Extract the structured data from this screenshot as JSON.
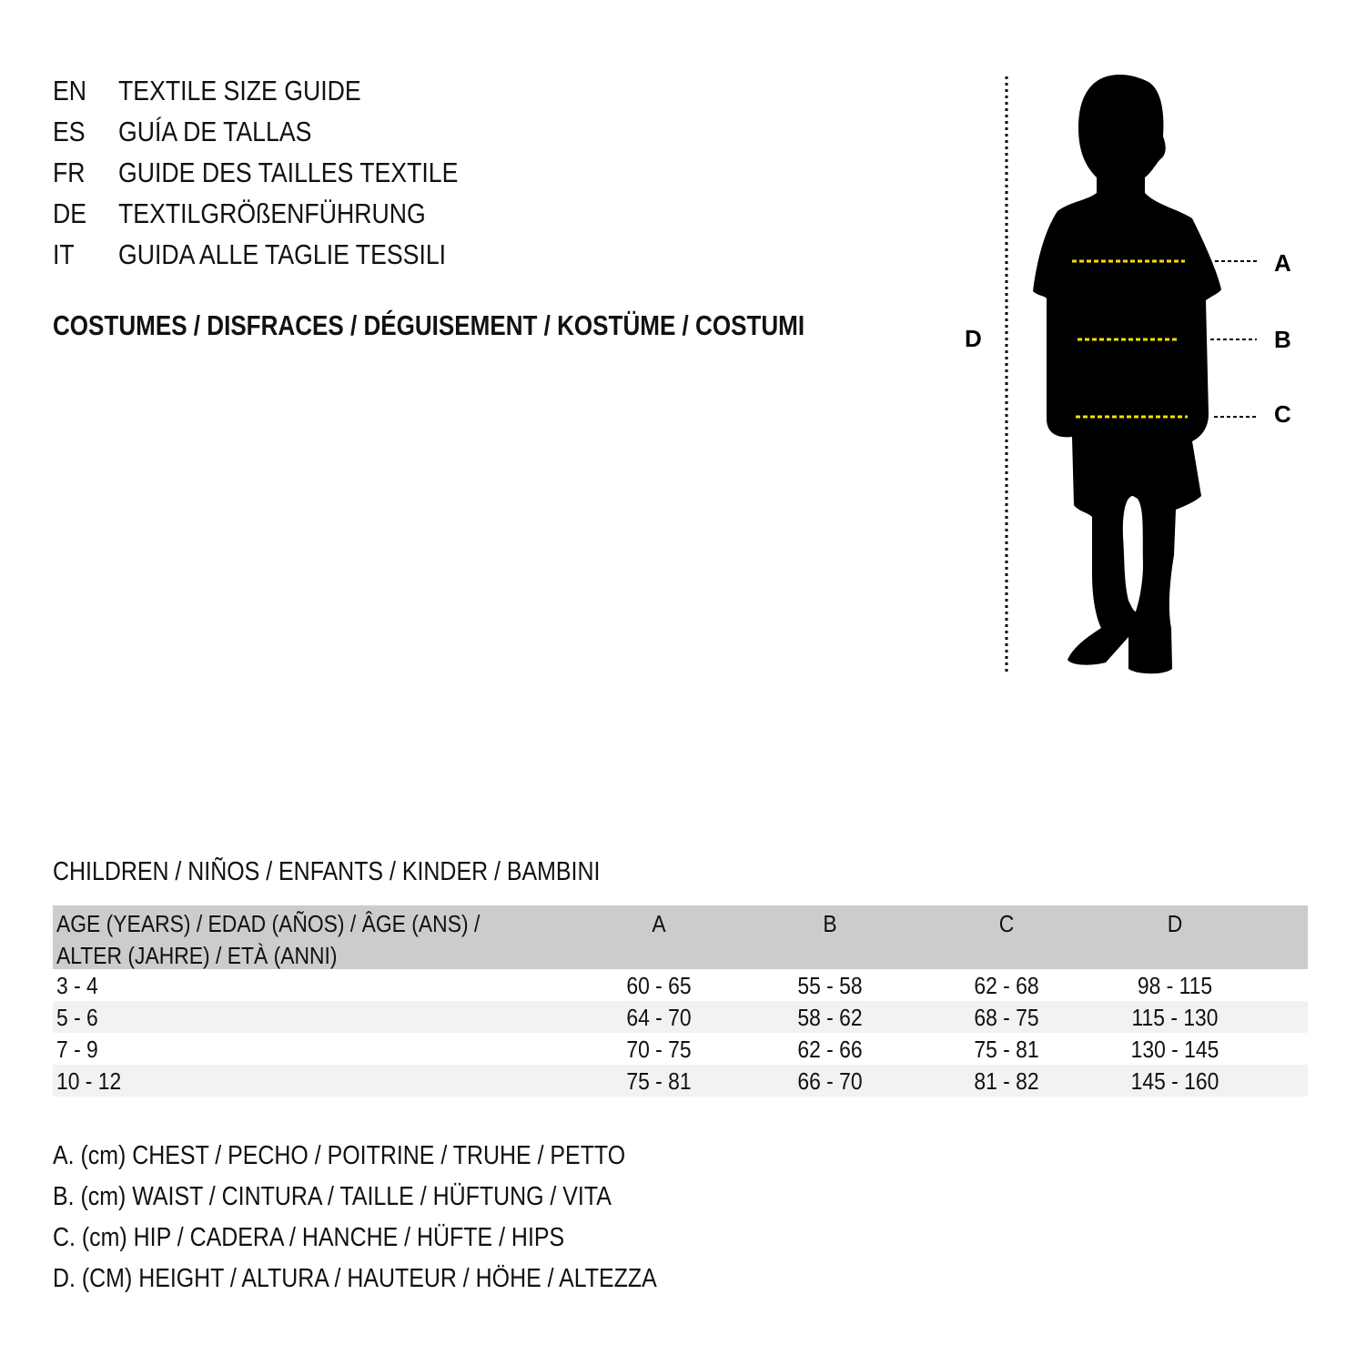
{
  "header": {
    "languages": [
      {
        "code": "EN",
        "title": "TEXTILE SIZE GUIDE"
      },
      {
        "code": "ES",
        "title": "GUÍA DE TALLAS"
      },
      {
        "code": "FR",
        "title": "GUIDE DES TAILLES TEXTILE"
      },
      {
        "code": "DE",
        "title": "TEXTILGRÖßENFÜHRUNG"
      },
      {
        "code": "IT",
        "title": "GUIDA ALLE TAGLIE TESSILI"
      }
    ],
    "category": "COSTUMES / DISFRACES / DÉGUISEMENT / KOSTÜME / COSTUMI"
  },
  "figure": {
    "labels": {
      "a": "A",
      "b": "B",
      "c": "C",
      "d": "D"
    },
    "colors": {
      "silhouette": "#000000",
      "measure_line": "#f5e000"
    }
  },
  "table": {
    "caption": "CHILDREN / NIÑOS / ENFANTS / KINDER / BAMBINI",
    "header": {
      "age_line1": "AGE (YEARS) / EDAD (AÑOS) / ÂGE (ANS) /",
      "age_line2": "ALTER (JAHRE) / ETÀ (ANNI)",
      "a": "A",
      "b": "B",
      "c": "C",
      "d": "D"
    },
    "rows": [
      {
        "age": "3 - 4",
        "a": "60 - 65",
        "b": "55 - 58",
        "c": "62 - 68",
        "d": "98 - 115"
      },
      {
        "age": "5 - 6",
        "a": "64 - 70",
        "b": "58 - 62",
        "c": "68 - 75",
        "d": "115 - 130"
      },
      {
        "age": "7 - 9",
        "a": "70 - 75",
        "b": "62 - 66",
        "c": "75 - 81",
        "d": "130 - 145"
      },
      {
        "age": "10 - 12",
        "a": "75 - 81",
        "b": "66 - 70",
        "c": "81 - 82",
        "d": "145 - 160"
      }
    ],
    "colors": {
      "header_bg": "#cccccc",
      "alt_row_bg": "#f2f2f2"
    }
  },
  "legend": [
    "A. (cm) CHEST / PECHO / POITRINE / TRUHE / PETTO",
    "B. (cm) WAIST / CINTURA / TAILLE / HÜFTUNG / VITA",
    "C. (cm) HIP / CADERA / HANCHE / HÜFTE / HIPS",
    "D. (CM) HEIGHT / ALTURA / HAUTEUR / HÖHE / ALTEZZA"
  ]
}
